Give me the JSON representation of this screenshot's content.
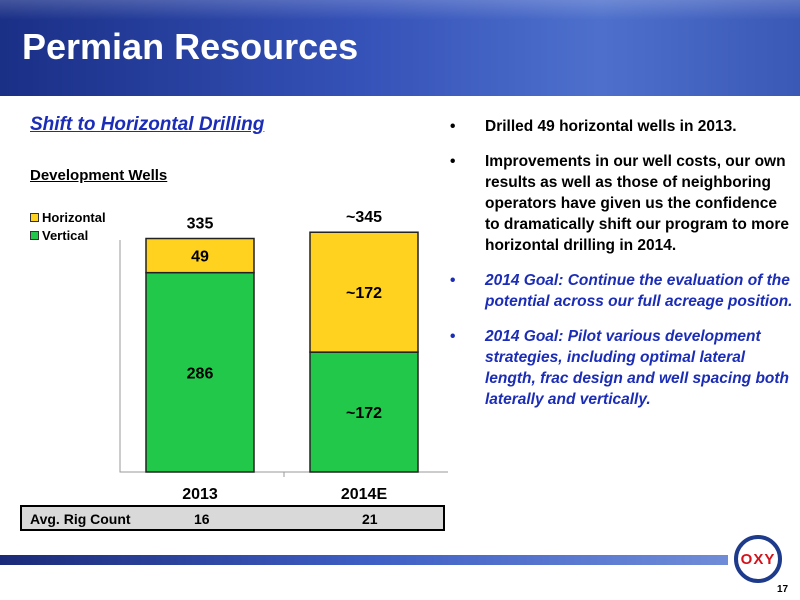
{
  "slide": {
    "title": "Permian Resources",
    "page_number": "17"
  },
  "subtitle": "Shift to Horizontal Drilling",
  "chart_label": "Development Wells",
  "legend": [
    {
      "name": "Horizontal",
      "color": "#ffd21f"
    },
    {
      "name": "Vertical",
      "color": "#22c84a"
    }
  ],
  "chart_data": {
    "type": "bar",
    "stacked": true,
    "categories": [
      "2013",
      "2014E"
    ],
    "series": [
      {
        "name": "Vertical",
        "values": [
          286,
          172
        ],
        "labels": [
          "286",
          "~172"
        ],
        "color": "#22c84a"
      },
      {
        "name": "Horizontal",
        "values": [
          49,
          172
        ],
        "labels": [
          "49",
          "~172"
        ],
        "color": "#ffd21f"
      }
    ],
    "totals": [
      "335",
      "~345"
    ],
    "title": "Development Wells",
    "ylim": [
      0,
      400
    ],
    "grid": false,
    "legend_position": "top-left"
  },
  "rig_count": {
    "label": "Avg. Rig Count",
    "values": [
      "16",
      "21"
    ]
  },
  "bullets": [
    {
      "symbol": "•",
      "text": "Drilled 49 horizontal wells in 2013.",
      "goal": false
    },
    {
      "symbol": "•",
      "text": "Improvements in our well costs, our own results as well as those of neighboring operators have given us the confidence to dramatically shift our program to more horizontal drilling in 2014.",
      "goal": false
    },
    {
      "symbol": "•",
      "text": "2014 Goal: Continue the evaluation of the potential across our full acreage position.",
      "goal": true
    },
    {
      "symbol": "•",
      "text": "2014 Goal: Pilot various development strategies, including optimal lateral length, frac design and well spacing both laterally and vertically.",
      "goal": true
    }
  ],
  "logo": {
    "text": "OXY"
  }
}
